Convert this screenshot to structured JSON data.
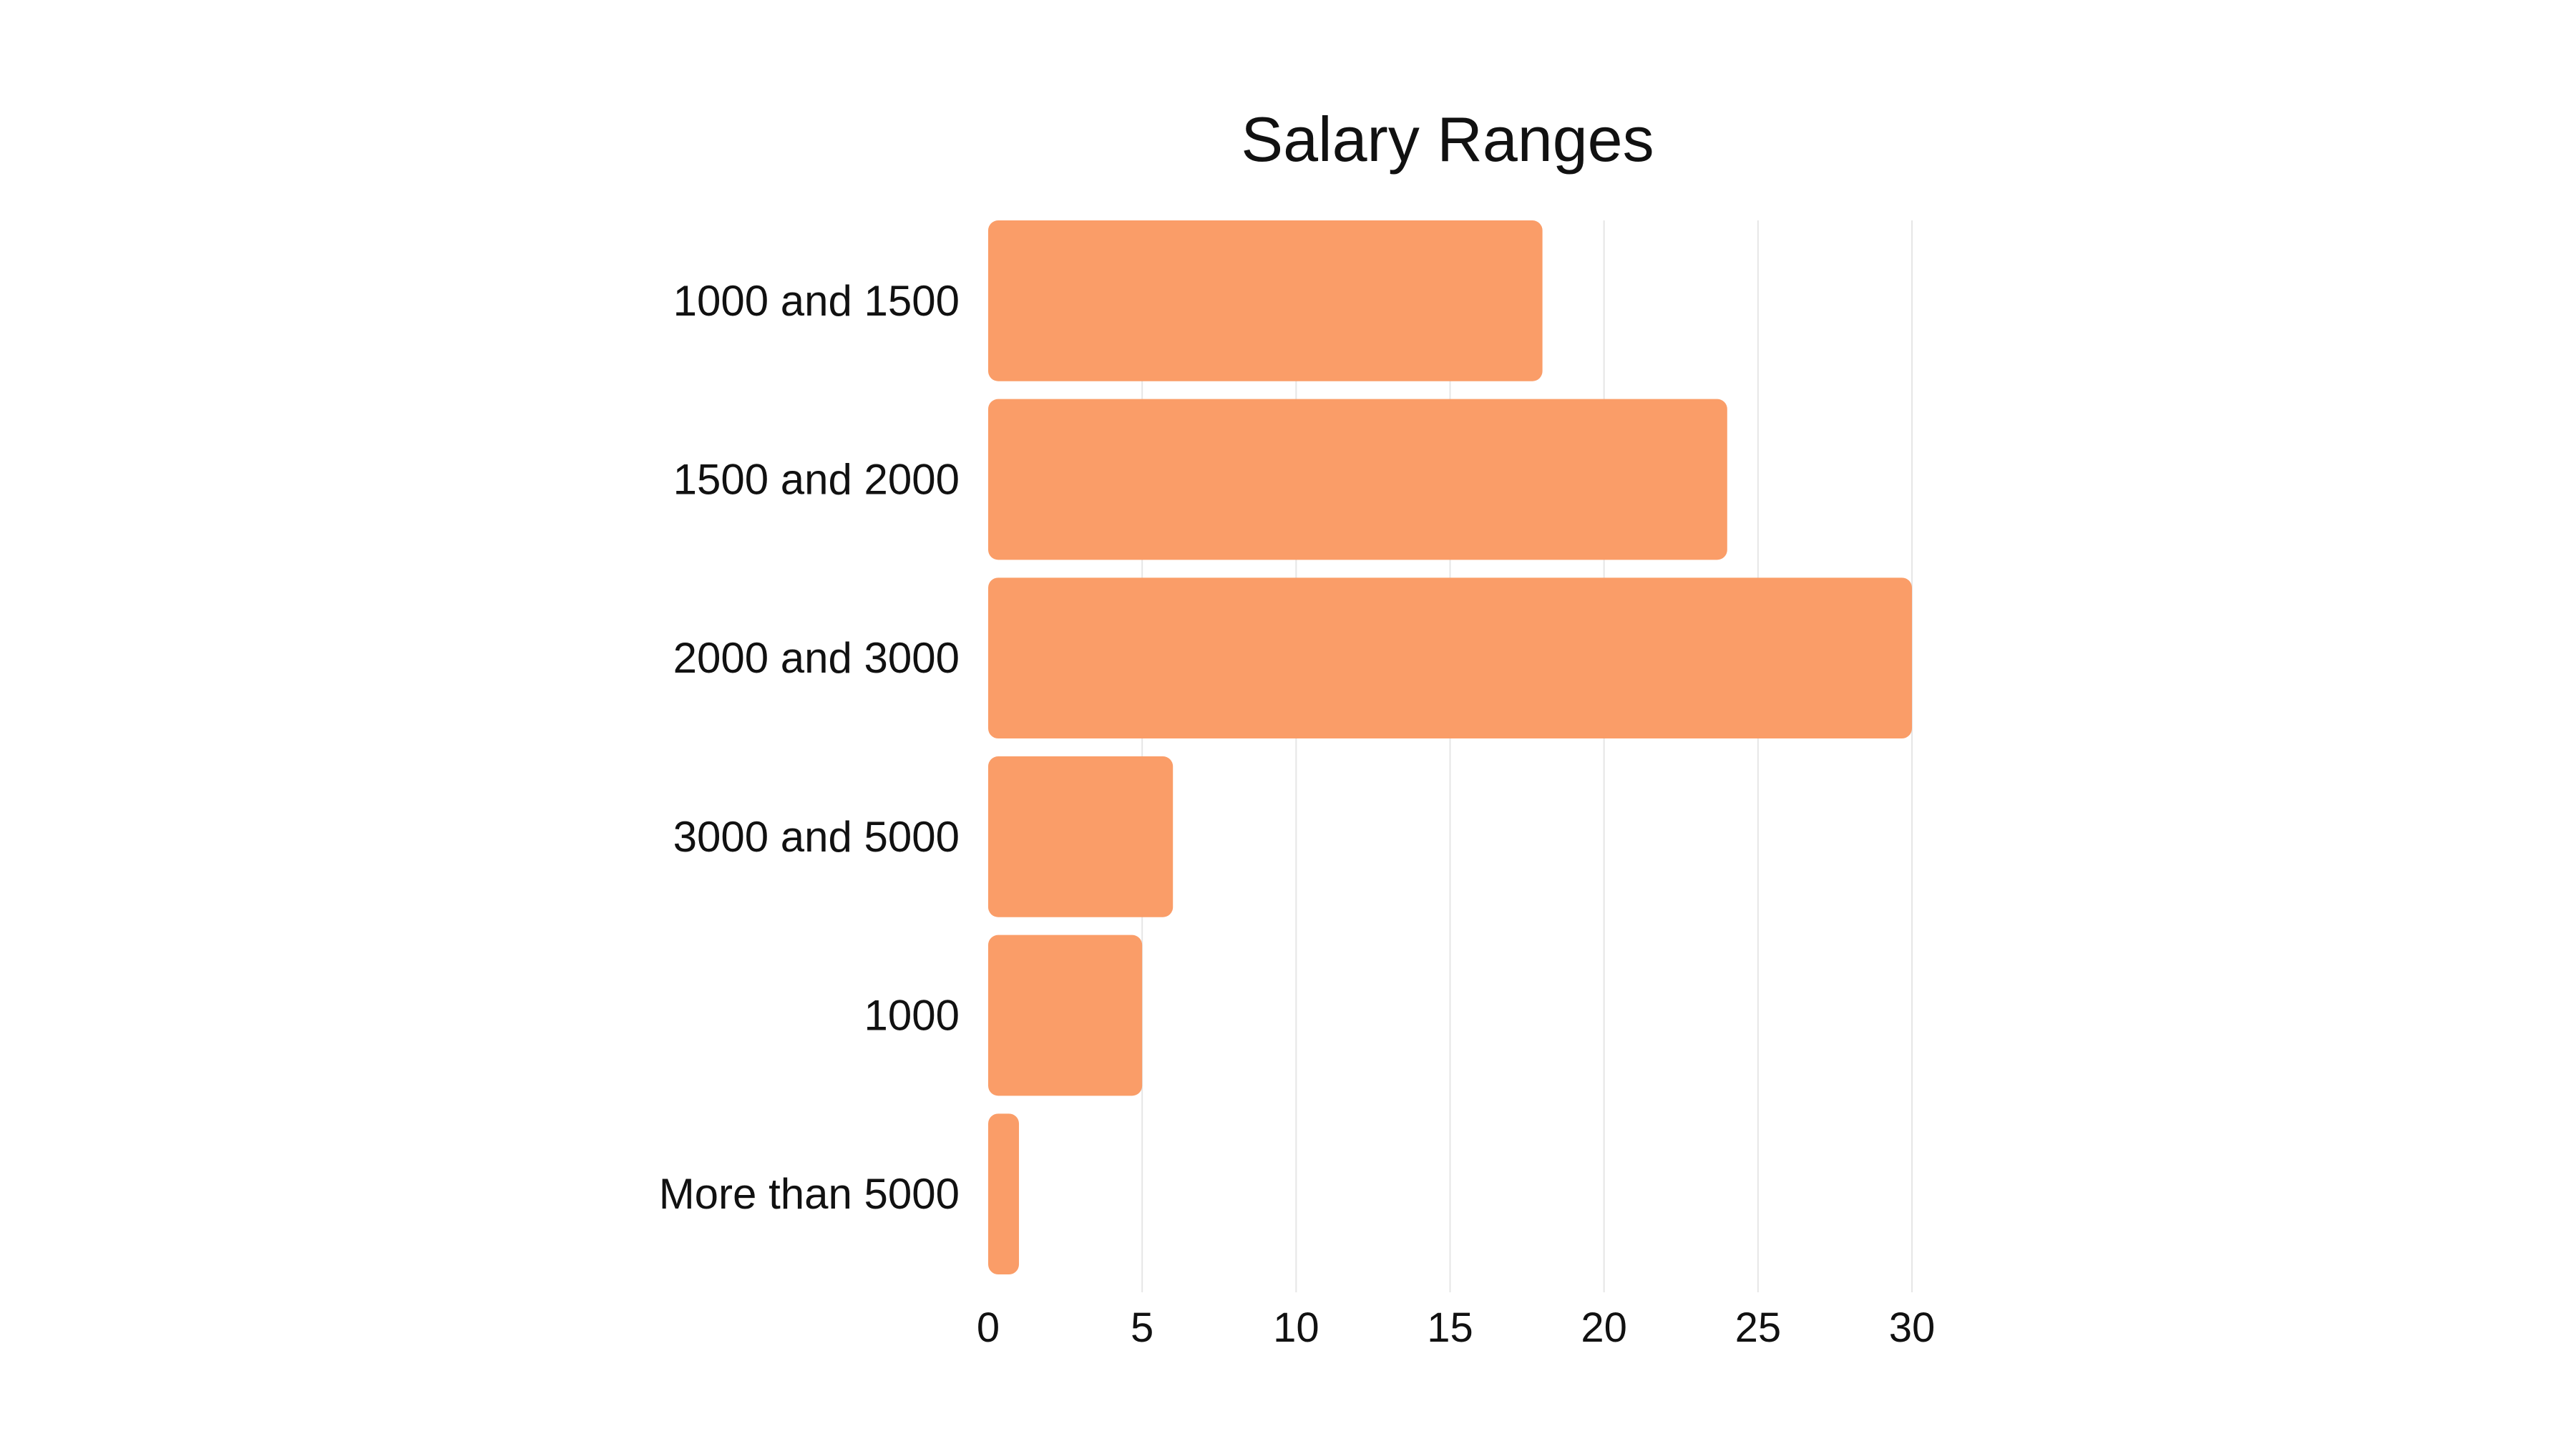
{
  "chart_data": {
    "type": "bar",
    "orientation": "horizontal",
    "title": "Salary Ranges",
    "xlabel": "",
    "ylabel": "",
    "categories": [
      "1000 and 1500",
      "1500 and 2000",
      "2000 and 3000",
      "3000 and 5000",
      "1000",
      "More than 5000"
    ],
    "values": [
      18,
      24,
      30,
      6,
      5,
      1
    ],
    "xlim": [
      0,
      30
    ],
    "xticks": [
      "0",
      "5",
      "10",
      "15",
      "20",
      "25",
      "30"
    ],
    "grid": true,
    "legend": "none",
    "bar_color": "#FA9D68",
    "gridline_color": "#e6e6e6",
    "text_color": "#111111"
  }
}
